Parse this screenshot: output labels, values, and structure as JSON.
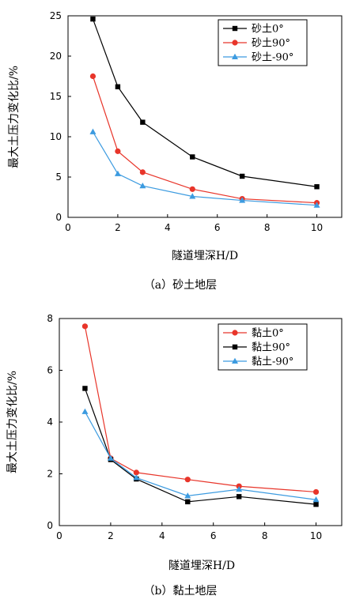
{
  "chart_data": [
    {
      "type": "line",
      "caption": "（a）砂土地层",
      "xlabel": "隧道埋深H/D",
      "ylabel": "最大土压力变化比/%",
      "xlim": [
        0,
        11
      ],
      "ylim": [
        0,
        25
      ],
      "xticks": [
        0,
        2,
        4,
        6,
        8,
        10
      ],
      "yticks": [
        0,
        5,
        10,
        15,
        20,
        25
      ],
      "legend_position": "top-right",
      "series": [
        {
          "name": "砂土0°",
          "color": "#000000",
          "marker": "square",
          "x": [
            1,
            2,
            3,
            5,
            7,
            10
          ],
          "y": [
            24.6,
            16.2,
            11.8,
            7.5,
            5.1,
            3.8
          ]
        },
        {
          "name": "砂土90°",
          "color": "#e8352a",
          "marker": "circle",
          "x": [
            1,
            2,
            3,
            5,
            7,
            10
          ],
          "y": [
            17.5,
            8.2,
            5.6,
            3.5,
            2.3,
            1.8
          ]
        },
        {
          "name": "砂土-90°",
          "color": "#3c9be0",
          "marker": "triangle",
          "x": [
            1,
            2,
            3,
            5,
            7,
            10
          ],
          "y": [
            10.6,
            5.4,
            3.9,
            2.6,
            2.1,
            1.5
          ]
        }
      ]
    },
    {
      "type": "line",
      "caption": "（b）黏土地层",
      "xlabel": "隧道埋深H/D",
      "ylabel": "最大土压力变化比/%",
      "xlim": [
        0,
        11
      ],
      "ylim": [
        0,
        8
      ],
      "xticks": [
        0,
        2,
        4,
        6,
        8,
        10
      ],
      "yticks": [
        0,
        2,
        4,
        6,
        8
      ],
      "legend_position": "top-right",
      "series": [
        {
          "name": "黏土0°",
          "color": "#e8352a",
          "marker": "circle",
          "x": [
            1,
            2,
            3,
            5,
            7,
            10
          ],
          "y": [
            7.7,
            2.6,
            2.05,
            1.78,
            1.52,
            1.3
          ]
        },
        {
          "name": "黏土90°",
          "color": "#000000",
          "marker": "square",
          "x": [
            1,
            2,
            3,
            5,
            7,
            10
          ],
          "y": [
            5.3,
            2.55,
            1.8,
            0.92,
            1.12,
            0.82
          ]
        },
        {
          "name": "黏土-90°",
          "color": "#3c9be0",
          "marker": "triangle",
          "x": [
            1,
            2,
            3,
            5,
            7,
            10
          ],
          "y": [
            4.4,
            2.6,
            1.85,
            1.15,
            1.4,
            1.0
          ]
        }
      ]
    }
  ]
}
